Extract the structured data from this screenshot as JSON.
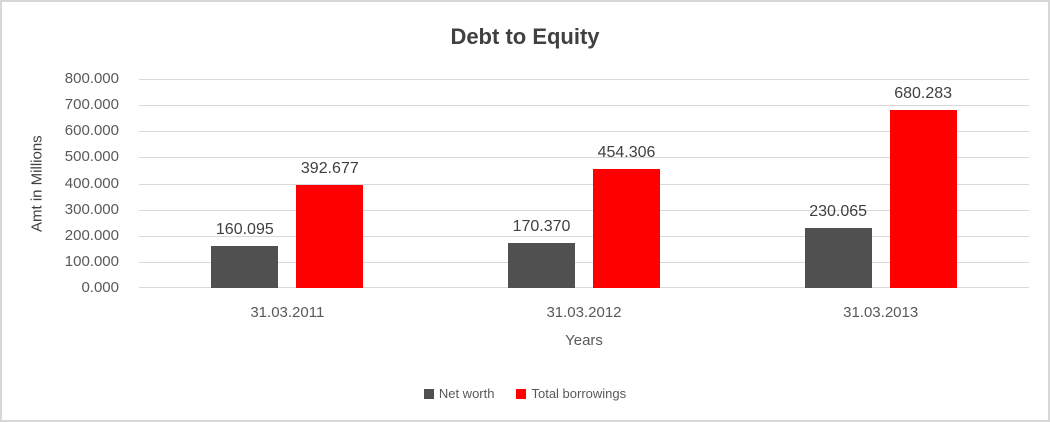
{
  "chart_data": {
    "type": "bar",
    "title": "Debt to Equity",
    "xlabel": "Years",
    "ylabel": "Amt in Millions",
    "categories": [
      "31.03.2011",
      "31.03.2012",
      "31.03.2013"
    ],
    "series": [
      {
        "name": "Net worth",
        "color": "#505050",
        "values": [
          160.095,
          170.37,
          230.065
        ],
        "labels": [
          "160.095",
          "170.370",
          "230.065"
        ]
      },
      {
        "name": "Total borrowings",
        "color": "#ff0000",
        "values": [
          392.677,
          454.306,
          680.283
        ],
        "labels": [
          "392.677",
          "454.306",
          "680.283"
        ]
      }
    ],
    "ylim": [
      0,
      800
    ],
    "y_ticks": [
      "800.000",
      "700.000",
      "600.000",
      "500.000",
      "400.000",
      "300.000",
      "200.000",
      "100.000",
      "0.000"
    ],
    "grid": true,
    "legend_position": "bottom",
    "colors": {
      "grid": "#d9d9d9",
      "frame": "#d7d7d7",
      "title_text": "#404040",
      "axis_text": "#595959",
      "data_label_text": "#404040"
    }
  }
}
